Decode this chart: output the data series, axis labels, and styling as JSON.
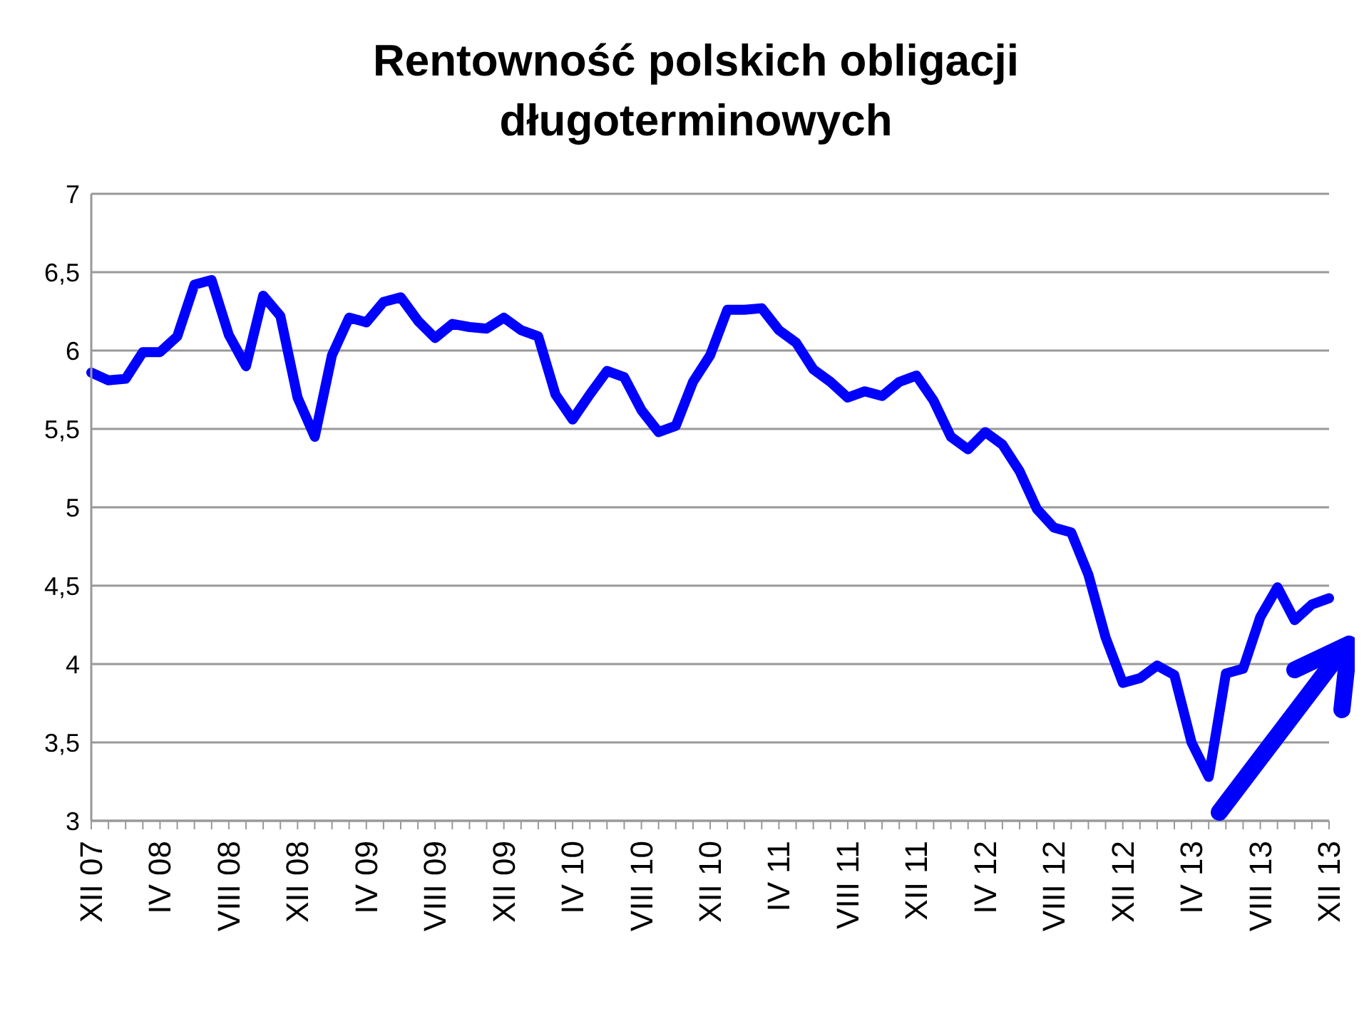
{
  "chart_data": {
    "type": "line",
    "title": "Rentowność polskich obligacji długoterminowych",
    "categories": [
      "XII 07",
      null,
      null,
      null,
      "IV 08",
      null,
      null,
      null,
      "VIII 08",
      null,
      null,
      null,
      "XII 08",
      null,
      null,
      null,
      "IV 09",
      null,
      null,
      null,
      "VIII 09",
      null,
      null,
      null,
      "XII 09",
      null,
      null,
      null,
      "IV 10",
      null,
      null,
      null,
      "VIII 10",
      null,
      null,
      null,
      "XII 10",
      null,
      null,
      null,
      "IV 11",
      null,
      null,
      null,
      "VIII 11",
      null,
      null,
      null,
      "XII 11",
      null,
      null,
      null,
      "IV 12",
      null,
      null,
      null,
      "VIII 12",
      null,
      null,
      null,
      "XII 12",
      null,
      null,
      null,
      "IV 13",
      null,
      null,
      null,
      "VIII 13",
      null,
      null,
      null,
      "XII 13"
    ],
    "series": [
      {
        "color": "#0000ff",
        "values": [
          5.86,
          5.81,
          5.82,
          5.99,
          5.99,
          6.09,
          6.42,
          6.45,
          6.1,
          5.9,
          6.35,
          6.22,
          5.7,
          5.45,
          5.97,
          6.21,
          6.18,
          6.31,
          6.34,
          6.19,
          6.08,
          6.17,
          6.15,
          6.14,
          6.21,
          6.13,
          6.09,
          5.72,
          5.56,
          5.72,
          5.87,
          5.83,
          5.62,
          5.48,
          5.52,
          5.8,
          5.97,
          6.26,
          6.26,
          6.27,
          6.13,
          6.05,
          5.88,
          5.8,
          5.7,
          5.74,
          5.71,
          5.8,
          5.84,
          5.68,
          5.45,
          5.37,
          5.48,
          5.4,
          5.23,
          4.99,
          4.87,
          4.84,
          4.57,
          4.17,
          3.88,
          3.91,
          3.99,
          3.93,
          3.5,
          3.28,
          3.94,
          3.97,
          4.3,
          4.49,
          4.28,
          4.38,
          4.42
        ]
      }
    ],
    "ylim": [
      3,
      7
    ],
    "yticks": [
      3,
      {
        "value": 3.5,
        "label": "3,5"
      },
      4,
      {
        "value": 4.5,
        "label": "4,5"
      },
      5,
      {
        "value": 5.5,
        "label": "5,5"
      },
      6,
      {
        "value": 6.5,
        "label": "6,5"
      },
      7
    ],
    "grid": "y",
    "marker": "none",
    "line_style": "solid"
  }
}
